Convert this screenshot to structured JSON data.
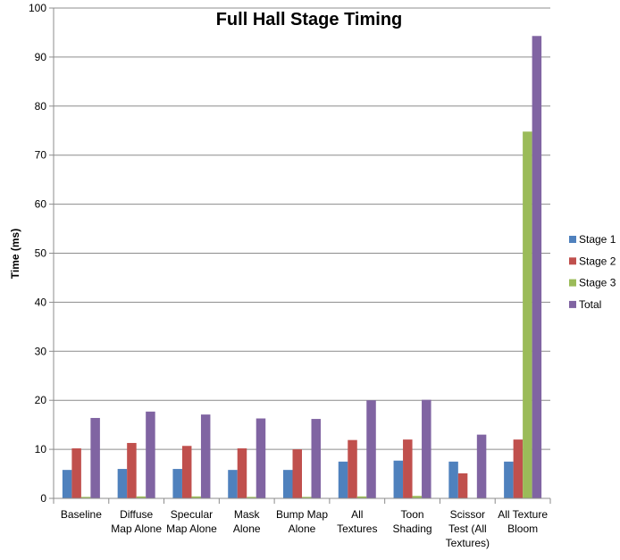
{
  "chart_data": {
    "type": "bar",
    "title": "Full Hall Stage Timing",
    "xlabel": "",
    "ylabel": "Time (ms)",
    "ylim": [
      0,
      100
    ],
    "yticks": [
      0,
      10,
      20,
      30,
      40,
      50,
      60,
      70,
      80,
      90,
      100
    ],
    "grid": true,
    "legend_position": "right",
    "categories": [
      [
        "Baseline"
      ],
      [
        "Diffuse",
        "Map Alone"
      ],
      [
        "Specular",
        "Map Alone"
      ],
      [
        "Mask",
        "Alone"
      ],
      [
        "Bump Map",
        "Alone"
      ],
      [
        "All",
        "Textures"
      ],
      [
        "Toon",
        "Shading"
      ],
      [
        "Scissor",
        "Test (All",
        "Textures)"
      ],
      [
        "All Texture",
        "Bloom"
      ]
    ],
    "series": [
      {
        "name": "Stage 1",
        "color": "#4f81bd",
        "values": [
          5.8,
          6.0,
          6.0,
          5.8,
          5.8,
          7.5,
          7.7,
          7.5,
          7.5
        ]
      },
      {
        "name": "Stage 2",
        "color": "#c0504d",
        "values": [
          10.2,
          11.3,
          10.7,
          10.2,
          10.0,
          11.9,
          12.0,
          5.1,
          12.0
        ]
      },
      {
        "name": "Stage 3",
        "color": "#9bbb59",
        "values": [
          0.3,
          0.4,
          0.4,
          0.3,
          0.3,
          0.4,
          0.5,
          0.1,
          74.8
        ]
      },
      {
        "name": "Total",
        "color": "#8064a2",
        "values": [
          16.4,
          17.7,
          17.1,
          16.3,
          16.2,
          20.0,
          20.1,
          13.0,
          94.3
        ]
      }
    ]
  },
  "colors": {
    "gridline": "#8c8c8c",
    "axis": "#8c8c8c",
    "background": "#ffffff"
  }
}
